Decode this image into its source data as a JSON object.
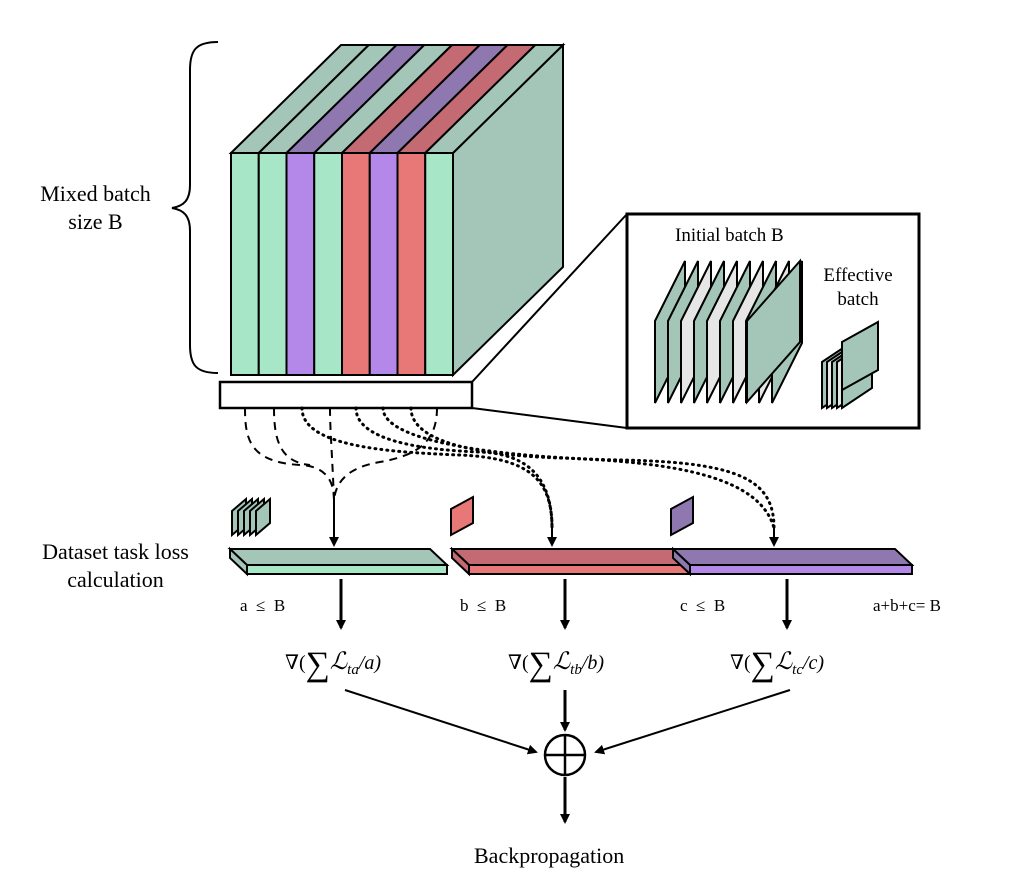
{
  "labels": {
    "mixed_batch": [
      "Mixed batch",
      "size B"
    ],
    "initial_batch": "Initial batch B",
    "effective_batch": [
      "Effective",
      "batch"
    ],
    "dataset_loss": [
      "Dataset task loss",
      "calculation"
    ],
    "constraint_a": "a  ≤  B",
    "constraint_b": "b  ≤  B",
    "constraint_c": "c  ≤  B",
    "constraint_sum": "a+b+c= B",
    "backprop": "Backpropagation",
    "oplus": "⊕"
  },
  "gradients": [
    {
      "nabla": "∇(",
      "sum": "∑",
      "L": "ℒ",
      "sub": "ta",
      "tail": "/a)"
    },
    {
      "nabla": "∇(",
      "sum": "∑",
      "L": "ℒ",
      "sub": "tb",
      "tail": "/b)"
    },
    {
      "nabla": "∇(",
      "sum": "∑",
      "L": "ℒ",
      "sub": "tc",
      "tail": "/c)"
    }
  ],
  "colors": {
    "green": "#a8e6c8",
    "green_side": "#a3c6b8",
    "purple": "#b388e8",
    "purple_top": "#8f78b0",
    "red": "#e87878",
    "red_top": "#c46a72",
    "gray_slice": "#e6e6e6",
    "stroke": "#000000"
  },
  "batch_slices": [
    "green",
    "green",
    "purple",
    "green",
    "red",
    "purple",
    "red",
    "green"
  ]
}
